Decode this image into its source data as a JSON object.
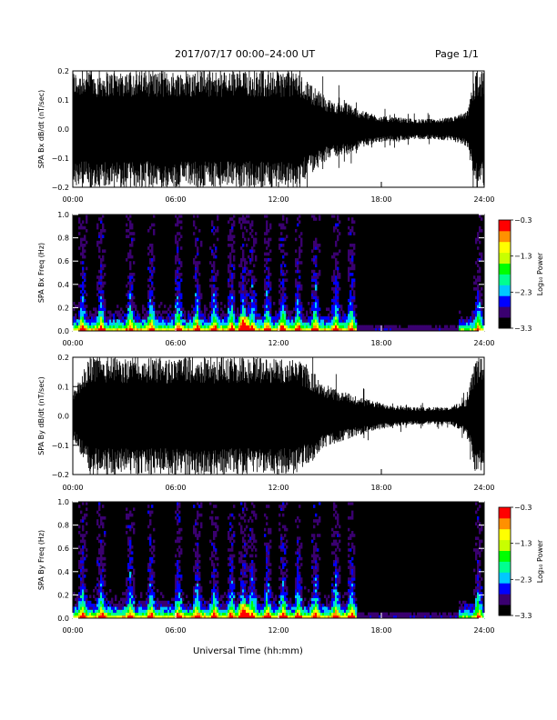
{
  "header": {
    "title": "2017/07/17   00:00–24:00 UT",
    "page": "Page 1/1"
  },
  "x_axis_title": "Universal Time (hh:mm)",
  "chart_data": [
    {
      "type": "line",
      "ylabel": "SPA Bx dB/dt (nT/sec)",
      "x_ticks": [
        "00:00",
        "06:00",
        "12:00",
        "18:00",
        "24:00"
      ],
      "y_ticks": [
        "0.2",
        "0.1",
        "0.0",
        "−0.1",
        "−0.2"
      ],
      "xlim": [
        0,
        24
      ],
      "ylim": [
        -0.2,
        0.2
      ],
      "x_unit": "hours UT",
      "envelope": {
        "hours": [
          0,
          2,
          4,
          6,
          8,
          10,
          12,
          13,
          14,
          15,
          16,
          17,
          18,
          19,
          20,
          21,
          22,
          23,
          23.5,
          24
        ],
        "amplitude": [
          0.2,
          0.2,
          0.2,
          0.2,
          0.2,
          0.2,
          0.2,
          0.2,
          0.15,
          0.1,
          0.09,
          0.06,
          0.045,
          0.04,
          0.035,
          0.035,
          0.04,
          0.06,
          0.2,
          0.2
        ]
      },
      "color": "#000000"
    },
    {
      "type": "heatmap",
      "ylabel": "SPA Bx Freq (Hz)",
      "x_ticks": [
        "00:00",
        "06:00",
        "12:00",
        "18:00",
        "24:00"
      ],
      "y_ticks": [
        "1.0",
        "0.8",
        "0.6",
        "0.4",
        "0.2",
        "0.0"
      ],
      "xlim": [
        0,
        24
      ],
      "ylim": [
        0,
        1.0
      ],
      "x_unit": "hours UT",
      "colorbar": {
        "title": "Log₁₀ Power",
        "ticks": [
          "−0.3",
          "−1.3",
          "−2.3",
          "−3.3"
        ],
        "range": [
          -3.3,
          -0.3
        ],
        "colors": [
          "#000000",
          "#3a0070",
          "#0000ff",
          "#00c8ff",
          "#00ff90",
          "#00ff00",
          "#c8ff00",
          "#ffff00",
          "#ff9000",
          "#ff0000"
        ]
      },
      "bursts_hours": [
        0.5,
        1.6,
        3.3,
        4.5,
        6.1,
        7.2,
        8.2,
        9.2,
        9.9,
        10.4,
        11.3,
        12.2,
        13.1,
        14.1,
        15.3,
        16.2,
        23.6
      ],
      "background_power": -3.3
    },
    {
      "type": "line",
      "ylabel": "SPA By dB/dt (nT/sec)",
      "x_ticks": [
        "00:00",
        "06:00",
        "12:00",
        "18:00",
        "24:00"
      ],
      "y_ticks": [
        "0.2",
        "0.1",
        "0.0",
        "−0.1",
        "−0.2"
      ],
      "xlim": [
        0,
        24
      ],
      "ylim": [
        -0.2,
        0.2
      ],
      "x_unit": "hours UT",
      "envelope": {
        "hours": [
          0,
          1,
          2,
          4,
          6,
          8,
          10,
          12,
          13,
          14,
          15,
          16,
          17,
          18,
          19,
          20,
          21,
          22,
          23,
          23.5,
          24
        ],
        "amplitude": [
          0.08,
          0.2,
          0.2,
          0.2,
          0.2,
          0.2,
          0.2,
          0.2,
          0.2,
          0.15,
          0.1,
          0.08,
          0.06,
          0.045,
          0.035,
          0.03,
          0.03,
          0.03,
          0.06,
          0.2,
          0.2
        ]
      },
      "color": "#000000"
    },
    {
      "type": "heatmap",
      "ylabel": "SPA By Freq (Hz)",
      "x_ticks": [
        "00:00",
        "06:00",
        "12:00",
        "18:00",
        "24:00"
      ],
      "y_ticks": [
        "1.0",
        "0.8",
        "0.6",
        "0.4",
        "0.2",
        "0.0"
      ],
      "xlim": [
        0,
        24
      ],
      "ylim": [
        0,
        1.0
      ],
      "x_unit": "hours UT",
      "colorbar": {
        "title": "Log₁₀ Power",
        "ticks": [
          "−0.3",
          "−1.3",
          "−2.3",
          "−3.3"
        ],
        "range": [
          -3.3,
          -0.3
        ],
        "colors": [
          "#000000",
          "#3a0070",
          "#0000ff",
          "#00c8ff",
          "#00ff90",
          "#00ff00",
          "#c8ff00",
          "#ffff00",
          "#ff9000",
          "#ff0000"
        ]
      },
      "bursts_hours": [
        0.5,
        1.6,
        3.3,
        4.5,
        6.1,
        7.2,
        8.2,
        9.2,
        9.9,
        10.4,
        11.3,
        12.2,
        13.1,
        14.1,
        15.3,
        16.2,
        23.6
      ],
      "background_power": -3.3
    }
  ]
}
